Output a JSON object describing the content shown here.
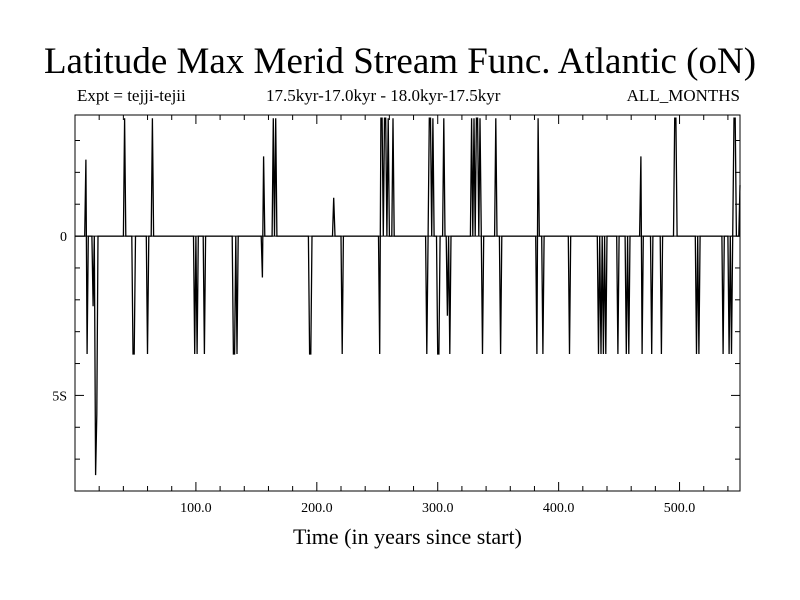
{
  "chart_data": {
    "type": "line",
    "title": "Latitude Max Merid Stream Func. Atlantic (oN)",
    "subtitle_left": "Expt = tejji-tejii",
    "subtitle_center": "17.5kyr-17.0kyr - 18.0kyr-17.5kyr",
    "subtitle_right": "ALL_MONTHS",
    "xlabel": "Time (in years since start)",
    "ylabel": "",
    "xlim": [
      0,
      550
    ],
    "ylim": [
      -8,
      3.8
    ],
    "x_ticks": [
      {
        "value": 100,
        "label": "100.0"
      },
      {
        "value": 200,
        "label": "200.0"
      },
      {
        "value": 300,
        "label": "300.0"
      },
      {
        "value": 400,
        "label": "400.0"
      },
      {
        "value": 500,
        "label": "500.0"
      }
    ],
    "y_ticks": [
      {
        "value": 0,
        "label": "0"
      },
      {
        "value": -5,
        "label": "5S"
      }
    ],
    "grid": false,
    "series": [
      {
        "color": "#000000",
        "points": [
          [
            0,
            0
          ],
          [
            8,
            0
          ],
          [
            9,
            2.4
          ],
          [
            10,
            -3.7
          ],
          [
            11,
            0
          ],
          [
            14,
            0
          ],
          [
            15,
            -2.2
          ],
          [
            16,
            0
          ],
          [
            17,
            -7.5
          ],
          [
            18,
            -5.6
          ],
          [
            19,
            0
          ],
          [
            40,
            0
          ],
          [
            41,
            3.7
          ],
          [
            42,
            0
          ],
          [
            47,
            0
          ],
          [
            48,
            -3.7
          ],
          [
            49,
            -3.7
          ],
          [
            50,
            0
          ],
          [
            59,
            0
          ],
          [
            60,
            -3.7
          ],
          [
            61,
            0
          ],
          [
            63,
            0
          ],
          [
            64,
            3.7
          ],
          [
            65,
            0
          ],
          [
            98,
            0
          ],
          [
            99,
            -3.7
          ],
          [
            100,
            0
          ],
          [
            101,
            -3.7
          ],
          [
            102,
            0
          ],
          [
            106,
            0
          ],
          [
            107,
            -3.7
          ],
          [
            108,
            0
          ],
          [
            130,
            0
          ],
          [
            131,
            -3.7
          ],
          [
            132,
            -3.7
          ],
          [
            133,
            0
          ],
          [
            134,
            -3.7
          ],
          [
            135,
            0
          ],
          [
            154,
            0
          ],
          [
            155,
            -1.3
          ],
          [
            156,
            2.5
          ],
          [
            157,
            0
          ],
          [
            163,
            0
          ],
          [
            164,
            3.7
          ],
          [
            165,
            0
          ],
          [
            166,
            3.7
          ],
          [
            167,
            0
          ],
          [
            193,
            0
          ],
          [
            194,
            -3.7
          ],
          [
            195,
            -3.7
          ],
          [
            196,
            0
          ],
          [
            213,
            0
          ],
          [
            214,
            1.2
          ],
          [
            215,
            0
          ],
          [
            220,
            0
          ],
          [
            221,
            -3.7
          ],
          [
            222,
            0
          ],
          [
            251,
            0
          ],
          [
            252,
            -3.7
          ],
          [
            253,
            3.7
          ],
          [
            254,
            3.7
          ],
          [
            255,
            0
          ],
          [
            256,
            3.7
          ],
          [
            257,
            3.7
          ],
          [
            258,
            0
          ],
          [
            259,
            3.7
          ],
          [
            260,
            0
          ],
          [
            262,
            0
          ],
          [
            263,
            3.7
          ],
          [
            264,
            0
          ],
          [
            290,
            0
          ],
          [
            291,
            -3.7
          ],
          [
            292,
            0
          ],
          [
            293,
            3.7
          ],
          [
            294,
            3.7
          ],
          [
            295,
            0
          ],
          [
            296,
            3.7
          ],
          [
            297,
            0
          ],
          [
            299,
            0
          ],
          [
            300,
            -3.7
          ],
          [
            301,
            -3.7
          ],
          [
            302,
            0
          ],
          [
            304,
            0
          ],
          [
            305,
            3.7
          ],
          [
            306,
            0
          ],
          [
            307,
            0
          ],
          [
            308,
            -2.5
          ],
          [
            309,
            0
          ],
          [
            310,
            -3.7
          ],
          [
            311,
            0
          ],
          [
            327,
            0
          ],
          [
            328,
            3.7
          ],
          [
            329,
            0
          ],
          [
            330,
            3.7
          ],
          [
            331,
            0
          ],
          [
            332,
            3.7
          ],
          [
            333,
            3.7
          ],
          [
            334,
            0
          ],
          [
            335,
            3.7
          ],
          [
            336,
            0
          ],
          [
            337,
            -3.7
          ],
          [
            338,
            0
          ],
          [
            347,
            0
          ],
          [
            348,
            3.7
          ],
          [
            349,
            0
          ],
          [
            351,
            0
          ],
          [
            352,
            -3.7
          ],
          [
            353,
            0
          ],
          [
            381,
            0
          ],
          [
            382,
            -3.7
          ],
          [
            383,
            3.7
          ],
          [
            384,
            0
          ],
          [
            386,
            0
          ],
          [
            387,
            -3.7
          ],
          [
            388,
            0
          ],
          [
            408,
            0
          ],
          [
            409,
            -3.7
          ],
          [
            410,
            0
          ],
          [
            432,
            0
          ],
          [
            433,
            -3.7
          ],
          [
            434,
            0
          ],
          [
            435,
            -3.7
          ],
          [
            436,
            0
          ],
          [
            437,
            -3.7
          ],
          [
            438,
            0
          ],
          [
            439,
            -3.7
          ],
          [
            440,
            0
          ],
          [
            448,
            0
          ],
          [
            449,
            -3.7
          ],
          [
            450,
            0
          ],
          [
            455,
            0
          ],
          [
            456,
            -3.7
          ],
          [
            457,
            0
          ],
          [
            458,
            -3.7
          ],
          [
            459,
            0
          ],
          [
            467,
            0
          ],
          [
            468,
            2.5
          ],
          [
            469,
            -3.7
          ],
          [
            470,
            0
          ],
          [
            476,
            0
          ],
          [
            477,
            -3.7
          ],
          [
            478,
            0
          ],
          [
            484,
            0
          ],
          [
            485,
            -3.7
          ],
          [
            486,
            0
          ],
          [
            495,
            0
          ],
          [
            496,
            3.7
          ],
          [
            497,
            3.7
          ],
          [
            498,
            0
          ],
          [
            513,
            0
          ],
          [
            514,
            -3.7
          ],
          [
            515,
            0
          ],
          [
            516,
            -3.7
          ],
          [
            517,
            0
          ],
          [
            535,
            0
          ],
          [
            536,
            -3.7
          ],
          [
            537,
            0
          ],
          [
            540,
            0
          ],
          [
            541,
            -3.7
          ],
          [
            542,
            0
          ],
          [
            543,
            -3.7
          ],
          [
            544,
            0
          ],
          [
            545,
            3.7
          ],
          [
            546,
            3.7
          ],
          [
            547,
            0
          ],
          [
            549,
            0
          ],
          [
            550,
            1.6
          ]
        ]
      }
    ]
  }
}
